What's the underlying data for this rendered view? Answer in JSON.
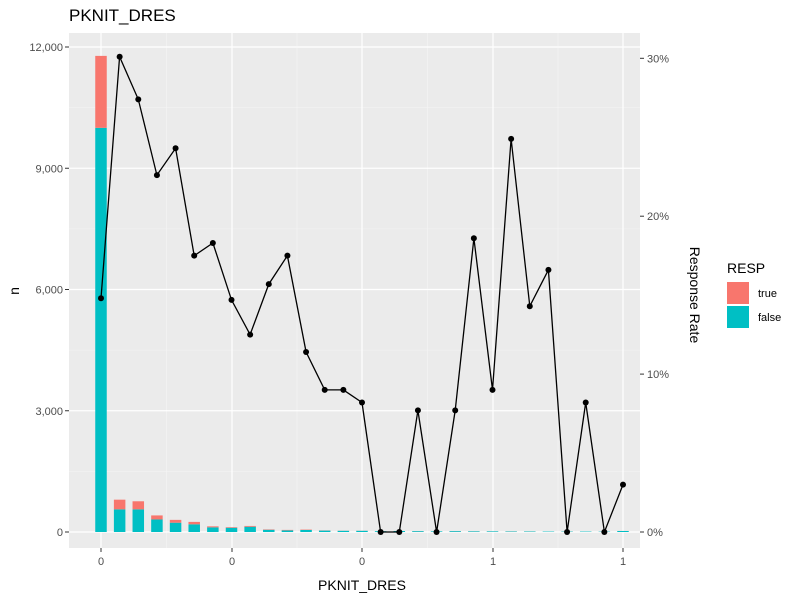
{
  "chart_data": {
    "type": "bar",
    "title": "PKNIT_DRES",
    "xlabel": "PKNIT_DRES",
    "ylabel": "n",
    "y2label": "Response Rate",
    "ylim": [
      0,
      12000
    ],
    "y2lim": [
      0,
      0.31
    ],
    "yticks": [
      "0",
      "3,000",
      "6,000",
      "9,000",
      "12,000"
    ],
    "y2ticks": [
      "0%",
      "10%",
      "20%",
      "30%"
    ],
    "xticks": [
      "0",
      "0",
      "0",
      "1",
      "1"
    ],
    "grid": true,
    "legend": {
      "title": "RESP",
      "position": "right",
      "items": [
        {
          "label": "true",
          "color": "#F8766D"
        },
        {
          "label": "false",
          "color": "#00BFC4"
        }
      ]
    },
    "x": [
      0.0,
      0.05,
      0.1,
      0.15,
      0.2,
      0.25,
      0.3,
      0.35,
      0.4,
      0.45,
      0.5,
      0.55,
      0.6,
      0.65,
      0.7,
      0.75,
      0.8,
      0.85,
      0.9,
      0.95,
      1.0,
      1.05,
      1.1,
      1.15,
      1.2,
      1.25,
      1.3,
      1.35,
      1.4
    ],
    "series": [
      {
        "name": "false",
        "color": "#00BFC4",
        "values": [
          10000,
          560,
          560,
          310,
          230,
          190,
          115,
          105,
          130,
          55,
          40,
          50,
          35,
          30,
          30,
          20,
          25,
          20,
          15,
          20,
          15,
          15,
          12,
          12,
          10,
          10,
          10,
          8,
          25
        ]
      },
      {
        "name": "true",
        "color": "#F8766D",
        "values": [
          1780,
          240,
          200,
          100,
          70,
          60,
          25,
          15,
          20,
          10,
          12,
          10,
          5,
          3,
          3,
          0,
          0,
          2,
          0,
          2,
          2,
          1,
          2,
          1,
          0,
          1,
          0,
          0,
          1
        ]
      }
    ],
    "response_rate": {
      "x": [
        0.0,
        0.05,
        0.1,
        0.15,
        0.2,
        0.25,
        0.3,
        0.35,
        0.4,
        0.45,
        0.5,
        0.55,
        0.6,
        0.65,
        0.7,
        0.75,
        0.8,
        0.85,
        0.9,
        0.95,
        1.0,
        1.05,
        1.1,
        1.15,
        1.2,
        1.25,
        1.3,
        1.35,
        1.4
      ],
      "values": [
        0.148,
        0.301,
        0.274,
        0.226,
        0.243,
        0.175,
        0.183,
        0.147,
        0.125,
        0.157,
        0.175,
        0.114,
        0.09,
        0.09,
        0.082,
        0.0,
        0.0,
        0.077,
        0.0,
        0.077,
        0.186,
        0.09,
        0.249,
        0.143,
        0.166,
        0.0,
        0.082,
        0.0,
        0.03
      ]
    }
  }
}
